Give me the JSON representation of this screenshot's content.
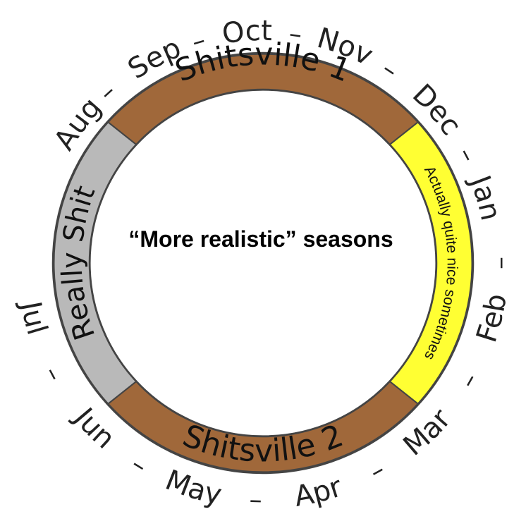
{
  "title": "“More realistic” seasons",
  "months": [
    "Jan",
    "Feb",
    "Mar",
    "Apr",
    "May",
    "Jun",
    "Jul",
    "Aug",
    "Sep",
    "Oct",
    "Nov",
    "Dec"
  ],
  "separator": "–",
  "segments": [
    {
      "label": "Shitsville 1",
      "color": "#a0683a"
    },
    {
      "label": "Actually quite nice sometimes",
      "color": "#ffff33"
    },
    {
      "label": "Shitsville 2",
      "color": "#a0683a"
    },
    {
      "label": "Really Shit",
      "color": "#b9b9b9"
    }
  ]
}
